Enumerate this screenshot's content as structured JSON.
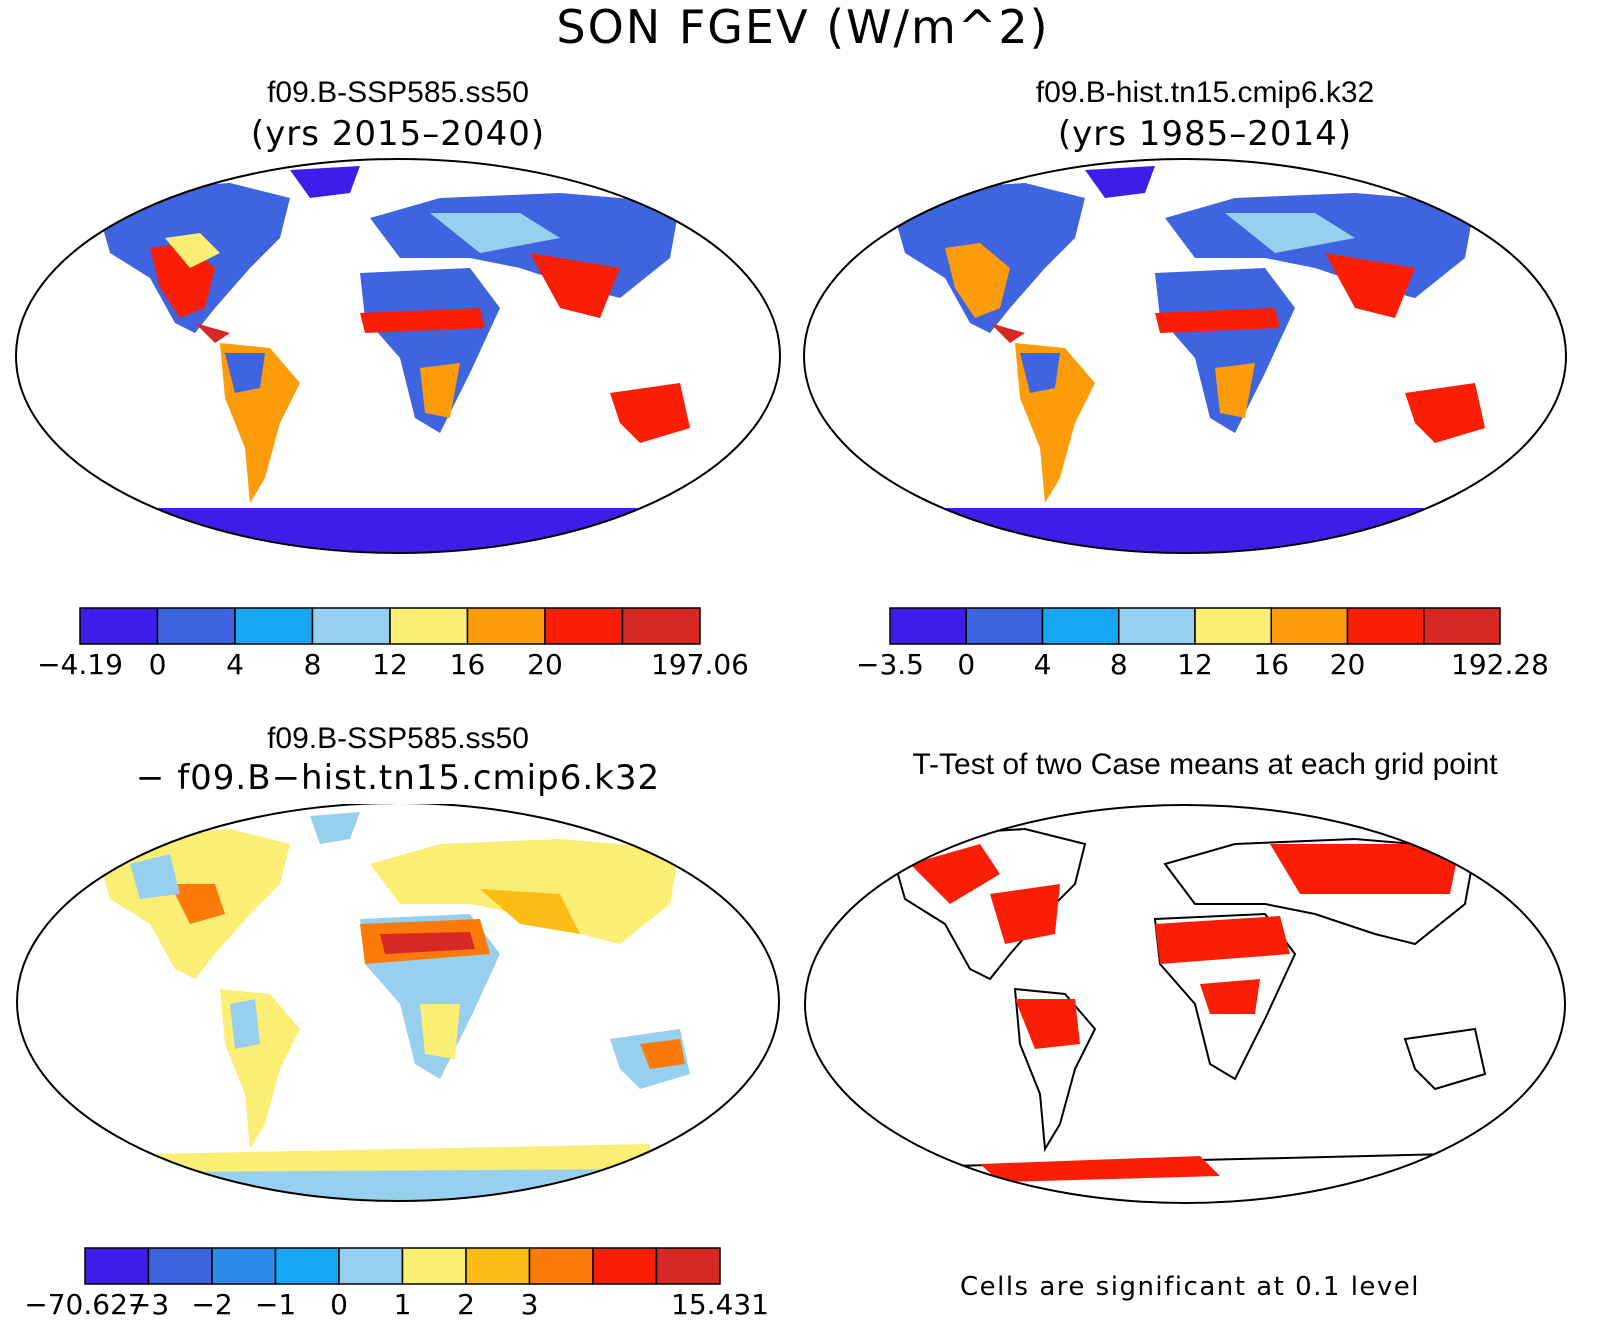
{
  "title": "SON FGEV (W/m^2)",
  "panels": [
    {
      "title": "f09.B-SSP585.ss50",
      "subtitle": "(yrs 2015–2040)",
      "colorbar": {
        "colors": [
          "#3d1ee8",
          "#3f64e0",
          "#16a6f2",
          "#97cfee",
          "#fbee74",
          "#fc9c0a",
          "#fb1e07",
          "#d62824"
        ],
        "labels": [
          "−4.19",
          "0",
          "4",
          "8",
          "12",
          "16",
          "20",
          "197.06"
        ]
      }
    },
    {
      "title": "f09.B-hist.tn15.cmip6.k32",
      "subtitle": "(yrs 1985–2014)",
      "colorbar": {
        "colors": [
          "#3d1ee8",
          "#3f64e0",
          "#16a6f2",
          "#97cfee",
          "#fbee74",
          "#fc9c0a",
          "#fb1e07",
          "#d62824"
        ],
        "labels": [
          "−3.5",
          "0",
          "4",
          "8",
          "12",
          "16",
          "20",
          "192.28"
        ]
      }
    },
    {
      "title": "f09.B-SSP585.ss50",
      "subtitle": "− f09.B−hist.tn15.cmip6.k32",
      "colorbar": {
        "colors": [
          "#3d1ee8",
          "#3f64e0",
          "#2e8ae8",
          "#16a6f2",
          "#97cfee",
          "#fbee74",
          "#fbbc16",
          "#fb7a0a",
          "#fb1e07",
          "#d62824"
        ],
        "labels": [
          "−70.627",
          "−3",
          "−2",
          "−1",
          "0",
          "1",
          "2",
          "3",
          "15.431"
        ]
      }
    },
    {
      "title": "T-Test of two Case means at each grid point",
      "note": "Cells are significant at 0.1 level"
    }
  ]
}
